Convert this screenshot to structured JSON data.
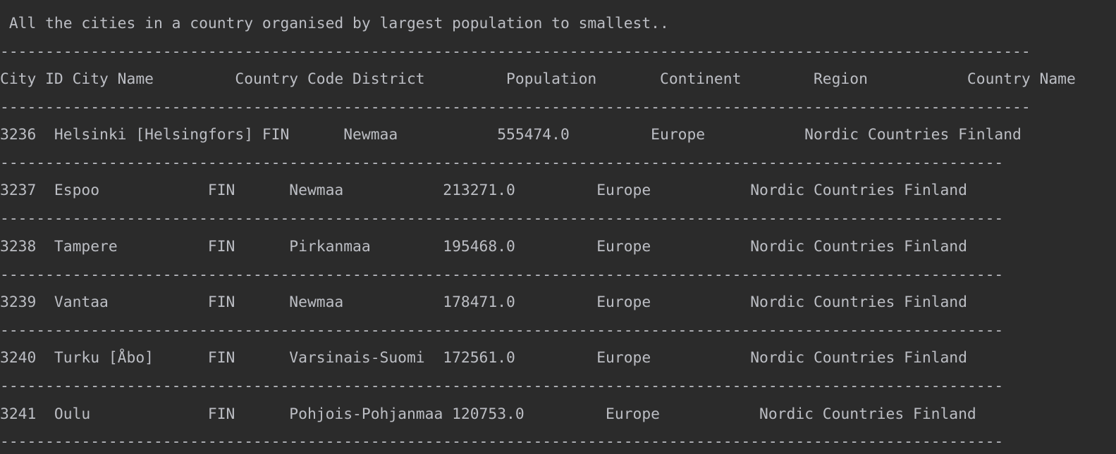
{
  "console": {
    "title": " All the cities in a country organised by largest population to smallest..",
    "header_separator": "------------------------------------------------------------------------------------------------------------------",
    "header": "City ID City Name         Country Code District         Population       Continent        Region           Country Name",
    "row_separator": "---------------------------------------------------------------------------------------------------------------",
    "rows": [
      "3236  Helsinki [Helsingfors] FIN      Newmaa           555474.0         Europe           Nordic Countries Finland",
      "3237  Espoo            FIN      Newmaa           213271.0         Europe           Nordic Countries Finland",
      "3238  Tampere          FIN      Pirkanmaa        195468.0         Europe           Nordic Countries Finland",
      "3239  Vantaa           FIN      Newmaa           178471.0         Europe           Nordic Countries Finland",
      "3240  Turku [Åbo]      FIN      Varsinais-Suomi  172561.0         Europe           Nordic Countries Finland",
      "3241  Oulu             FIN      Pohjois-Pohjanmaa 120753.0         Europe           Nordic Countries Finland"
    ]
  }
}
